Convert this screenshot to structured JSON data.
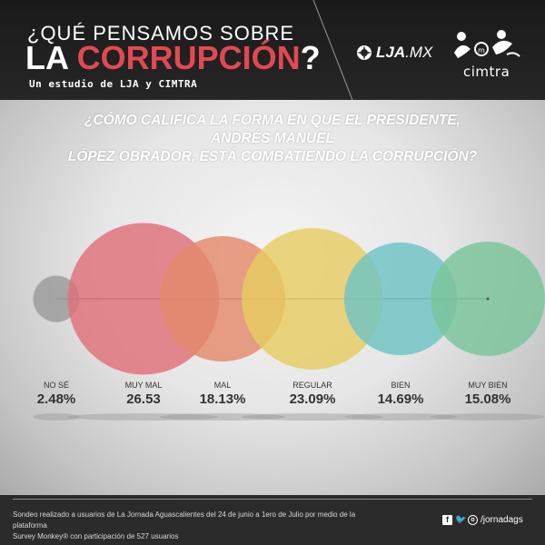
{
  "header": {
    "title_line1": "¿QUÉ PENSAMOS SOBRE",
    "title_line2_a": "LA ",
    "title_line2_b": "CORRUPCIÓN",
    "title_line2_c": "?",
    "subtitle": "Un estudio de LJA y CIMTRA",
    "logo_lja_bold": "LJA",
    "logo_lja_light": ".MX",
    "logo_cimtra": "cimtra"
  },
  "question_line1": "¿CÓMO CALIFICA LA FORMA EN QUE EL PRESIDENTE, ANDRÉS MANUEL",
  "question_line2": "LÓPEZ OBRADOR, ESTÁ COMBATIENDO LA CORRUPCIÓN?",
  "chart_data": {
    "type": "bubble",
    "title": "¿CÓMO CALIFICA LA FORMA EN QUE EL PRESIDENTE, ANDRÉS MANUEL LÓPEZ OBRADOR, ESTÁ COMBATIENDO LA CORRUPCIÓN?",
    "categories": [
      "NO SÉ",
      "MUY MAL",
      "MAL",
      "REGULAR",
      "BIEN",
      "MUY BIEN"
    ],
    "values": [
      2.48,
      26.53,
      18.13,
      23.09,
      14.69,
      15.08
    ],
    "value_labels": [
      "2.48%",
      "26.53",
      "18.13%",
      "23.09%",
      "14.69%",
      "15.08%"
    ],
    "colors": [
      "#9a9a9a",
      "#e0707a",
      "#e38a6a",
      "#e6cc62",
      "#6fc3c4",
      "#79c49a"
    ],
    "unit": "%"
  },
  "footer": {
    "note_line1": "Sondeo realizado a usuarios de La Jornada Aguascalientes del 24 de junio a 1ero de Julio por medio de la plataforma",
    "note_line2": "Survey Monkey® con participación de 527 usuarios",
    "social_handle": "/jornadags"
  }
}
